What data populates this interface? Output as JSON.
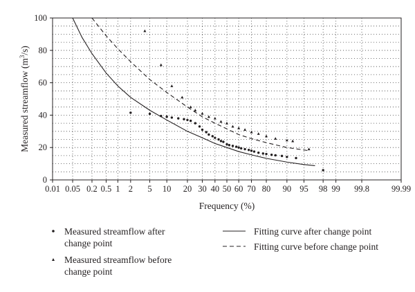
{
  "chart_data": {
    "type": "scatter",
    "xlabel": "Frequency (%)",
    "ylabel_main": "Measured streamflow (m",
    "ylabel_sup": "3",
    "ylabel_tail": "/s)",
    "x_scale": "probability (normal)",
    "x_ticks": [
      0.01,
      0.05,
      0.2,
      0.5,
      1,
      2,
      5,
      10,
      20,
      30,
      40,
      50,
      60,
      70,
      80,
      90,
      95,
      98,
      99,
      99.8,
      99.99
    ],
    "x_tick_labels": [
      "0.01",
      "0.05",
      "0.2",
      "0.5",
      "1",
      "2",
      "5",
      "10",
      "20",
      "30",
      "40",
      "50",
      "60",
      "70",
      "80",
      "90",
      "95",
      "98",
      "99",
      "99.8",
      "99.99"
    ],
    "y_ticks": [
      0,
      20,
      40,
      60,
      80,
      100
    ],
    "y_tick_labels": [
      "0",
      "20",
      "40",
      "60",
      "80",
      "100"
    ],
    "ylim": [
      0,
      100
    ],
    "grid": "dotted",
    "legend_position": "bottom",
    "series": [
      {
        "name": "Measured streamflow after change point",
        "marker": "dot",
        "points": [
          [
            2,
            41.5
          ],
          [
            5,
            40.8
          ],
          [
            8,
            39.5
          ],
          [
            10,
            39
          ],
          [
            12,
            38.5
          ],
          [
            15,
            38
          ],
          [
            18,
            37.5
          ],
          [
            20,
            37
          ],
          [
            22,
            36.5
          ],
          [
            25,
            35
          ],
          [
            28,
            33
          ],
          [
            30,
            31
          ],
          [
            33,
            29.5
          ],
          [
            35,
            28
          ],
          [
            38,
            27
          ],
          [
            40,
            26
          ],
          [
            43,
            25
          ],
          [
            45,
            24
          ],
          [
            47,
            23.5
          ],
          [
            50,
            22
          ],
          [
            52,
            21.5
          ],
          [
            55,
            21
          ],
          [
            58,
            20.5
          ],
          [
            60,
            20
          ],
          [
            62,
            19.5
          ],
          [
            65,
            19
          ],
          [
            68,
            18.5
          ],
          [
            70,
            18
          ],
          [
            72,
            17.5
          ],
          [
            75,
            16.8
          ],
          [
            78,
            16.3
          ],
          [
            80,
            16
          ],
          [
            83,
            15.5
          ],
          [
            85,
            15.2
          ],
          [
            88,
            14.8
          ],
          [
            90,
            14.2
          ],
          [
            93,
            13.5
          ],
          [
            98,
            6
          ]
        ]
      },
      {
        "name": "Measured streamflow before change point",
        "marker": "triangle",
        "points": [
          [
            4,
            92
          ],
          [
            8,
            71
          ],
          [
            12,
            58
          ],
          [
            17,
            51
          ],
          [
            22,
            45
          ],
          [
            25,
            43
          ],
          [
            30,
            41
          ],
          [
            35,
            39
          ],
          [
            40,
            38
          ],
          [
            45,
            36
          ],
          [
            50,
            35
          ],
          [
            55,
            33
          ],
          [
            60,
            32
          ],
          [
            65,
            31
          ],
          [
            70,
            29.5
          ],
          [
            75,
            28.5
          ],
          [
            80,
            27
          ],
          [
            85,
            25.5
          ],
          [
            90,
            24.5
          ],
          [
            92,
            24
          ],
          [
            96,
            19
          ]
        ]
      },
      {
        "name": "Fitting curve after change point",
        "style": "solid",
        "points": [
          [
            0.05,
            100
          ],
          [
            0.1,
            88
          ],
          [
            0.2,
            78
          ],
          [
            0.5,
            66
          ],
          [
            1,
            58
          ],
          [
            2,
            51
          ],
          [
            5,
            43
          ],
          [
            10,
            37
          ],
          [
            20,
            30
          ],
          [
            30,
            26
          ],
          [
            40,
            22.5
          ],
          [
            50,
            20
          ],
          [
            60,
            17.5
          ],
          [
            70,
            15.5
          ],
          [
            80,
            13.3
          ],
          [
            90,
            11
          ],
          [
            95,
            9.5
          ],
          [
            97,
            8.8
          ]
        ]
      },
      {
        "name": "Fitting curve before change point",
        "style": "dashed",
        "points": [
          [
            0.2,
            100
          ],
          [
            0.5,
            89
          ],
          [
            1,
            81
          ],
          [
            2,
            73
          ],
          [
            5,
            62
          ],
          [
            10,
            54
          ],
          [
            20,
            45
          ],
          [
            30,
            39
          ],
          [
            40,
            35
          ],
          [
            50,
            31.5
          ],
          [
            60,
            28
          ],
          [
            70,
            25.5
          ],
          [
            80,
            23
          ],
          [
            90,
            20
          ],
          [
            95,
            18.5
          ],
          [
            96,
            18
          ]
        ]
      }
    ]
  }
}
